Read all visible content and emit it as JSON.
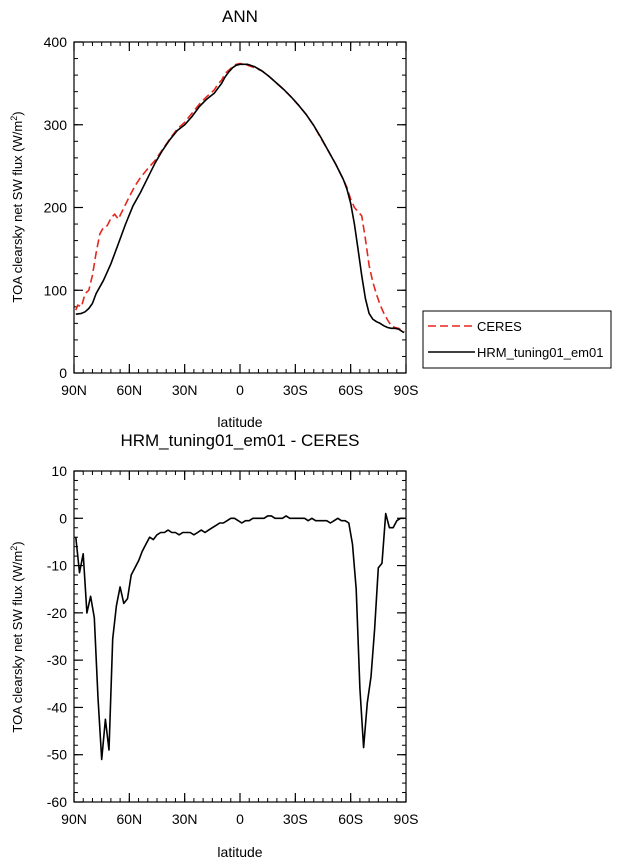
{
  "chart_data": [
    {
      "type": "line",
      "title": "ANN",
      "xlabel": "latitude",
      "ylabel": "TOA clearsky net SW flux (W/m²)",
      "xlim": [
        90,
        -90
      ],
      "ylim": [
        0,
        400
      ],
      "yticks": [
        0,
        100,
        200,
        300,
        400
      ],
      "xticks": [
        90,
        60,
        30,
        0,
        -30,
        -60,
        -90
      ],
      "xticklabels": [
        "90N",
        "60N",
        "30N",
        "0",
        "30S",
        "60S",
        "90S"
      ],
      "legend": "outside-right",
      "series": [
        {
          "name": "CERES",
          "color": "#e8261d",
          "dash": true,
          "points": [
            [
              89,
              76
            ],
            [
              88,
              82
            ],
            [
              86,
              80
            ],
            [
              84,
              96
            ],
            [
              82,
              100
            ],
            [
              80,
              118
            ],
            [
              78,
              145
            ],
            [
              76,
              168
            ],
            [
              74,
              176
            ],
            [
              72,
              178
            ],
            [
              70,
              187
            ],
            [
              68,
              192
            ],
            [
              66,
              186
            ],
            [
              64,
              195
            ],
            [
              60,
              213
            ],
            [
              57,
              226
            ],
            [
              54,
              236
            ],
            [
              50,
              247
            ],
            [
              46,
              257
            ],
            [
              42,
              270
            ],
            [
              38,
              283
            ],
            [
              34,
              295
            ],
            [
              30,
              303
            ],
            [
              26,
              314
            ],
            [
              22,
              325
            ],
            [
              18,
              334
            ],
            [
              14,
              342
            ],
            [
              12,
              349
            ],
            [
              10,
              354
            ],
            [
              8,
              362
            ],
            [
              6,
              366
            ],
            [
              4,
              370
            ],
            [
              2,
              373
            ],
            [
              0,
              374
            ],
            [
              -4,
              372
            ],
            [
              -8,
              369
            ],
            [
              -12,
              365
            ],
            [
              -16,
              358
            ],
            [
              -20,
              350
            ],
            [
              -24,
              342
            ],
            [
              -28,
              333
            ],
            [
              -32,
              323
            ],
            [
              -36,
              312
            ],
            [
              -40,
              299
            ],
            [
              -44,
              283
            ],
            [
              -48,
              268
            ],
            [
              -52,
              252
            ],
            [
              -56,
              234
            ],
            [
              -58,
              224
            ],
            [
              -60,
              210
            ],
            [
              -62,
              200
            ],
            [
              -64,
              195
            ],
            [
              -66,
              190
            ],
            [
              -68,
              162
            ],
            [
              -70,
              130
            ],
            [
              -72,
              110
            ],
            [
              -74,
              95
            ],
            [
              -76,
              82
            ],
            [
              -78,
              72
            ],
            [
              -80,
              64
            ],
            [
              -82,
              57
            ],
            [
              -84,
              55
            ],
            [
              -86,
              54
            ],
            [
              -88,
              51
            ],
            [
              -89,
              50
            ]
          ]
        },
        {
          "name": "HRM_tuning01_em01",
          "color": "#000000",
          "dash": false,
          "points": [
            [
              89,
              71
            ],
            [
              86,
              72
            ],
            [
              84,
              74
            ],
            [
              82,
              78
            ],
            [
              80,
              84
            ],
            [
              78,
              96
            ],
            [
              74,
              112
            ],
            [
              70,
              132
            ],
            [
              66,
              156
            ],
            [
              62,
              180
            ],
            [
              58,
              202
            ],
            [
              54,
              218
            ],
            [
              50,
              236
            ],
            [
              46,
              254
            ],
            [
              42,
              269
            ],
            [
              38,
              282
            ],
            [
              34,
              293
            ],
            [
              30,
              300
            ],
            [
              26,
              310
            ],
            [
              22,
              322
            ],
            [
              18,
              331
            ],
            [
              14,
              338
            ],
            [
              12,
              344
            ],
            [
              10,
              350
            ],
            [
              8,
              358
            ],
            [
              6,
              364
            ],
            [
              4,
              369
            ],
            [
              2,
              372
            ],
            [
              0,
              373
            ],
            [
              -4,
              373
            ],
            [
              -8,
              370
            ],
            [
              -12,
              365
            ],
            [
              -16,
              358
            ],
            [
              -20,
              350
            ],
            [
              -24,
              342
            ],
            [
              -28,
              333
            ],
            [
              -32,
              323
            ],
            [
              -36,
              312
            ],
            [
              -40,
              299
            ],
            [
              -44,
              284
            ],
            [
              -48,
              268
            ],
            [
              -52,
              252
            ],
            [
              -56,
              234
            ],
            [
              -58,
              222
            ],
            [
              -60,
              205
            ],
            [
              -62,
              180
            ],
            [
              -64,
              150
            ],
            [
              -66,
              118
            ],
            [
              -68,
              90
            ],
            [
              -70,
              72
            ],
            [
              -72,
              65
            ],
            [
              -74,
              62
            ],
            [
              -76,
              60
            ],
            [
              -78,
              57
            ],
            [
              -80,
              55
            ],
            [
              -82,
              54
            ],
            [
              -84,
              54
            ],
            [
              -86,
              53
            ],
            [
              -88,
              50
            ],
            [
              -89,
              49
            ]
          ]
        }
      ]
    },
    {
      "type": "line",
      "title": "HRM_tuning01_em01 - CERES",
      "xlabel": "latitude",
      "ylabel": "TOA clearsky net SW flux (W/m²)",
      "xlim": [
        90,
        -90
      ],
      "ylim": [
        -60,
        10
      ],
      "yticks": [
        -60,
        -50,
        -40,
        -30,
        -20,
        -10,
        0,
        10
      ],
      "xticks": [
        90,
        60,
        30,
        0,
        -30,
        -60,
        -90
      ],
      "xticklabels": [
        "90N",
        "60N",
        "30N",
        "0",
        "30S",
        "60S",
        "90S"
      ],
      "series": [
        {
          "name": "HRM_tuning01_em01 - CERES",
          "color": "#000000",
          "dash": false,
          "points": [
            [
              89,
              -4
            ],
            [
              87,
              -11.5
            ],
            [
              85,
              -7.5
            ],
            [
              83,
              -20
            ],
            [
              81,
              -16.5
            ],
            [
              79,
              -21
            ],
            [
              77,
              -38
            ],
            [
              75,
              -51
            ],
            [
              73,
              -42.5
            ],
            [
              71,
              -49
            ],
            [
              69,
              -25.5
            ],
            [
              67,
              -18.5
            ],
            [
              65,
              -14.5
            ],
            [
              63,
              -18
            ],
            [
              61,
              -17
            ],
            [
              59,
              -12
            ],
            [
              57,
              -10.5
            ],
            [
              55,
              -9
            ],
            [
              53,
              -7
            ],
            [
              51,
              -5.5
            ],
            [
              49,
              -4
            ],
            [
              47,
              -4.5
            ],
            [
              45,
              -3.5
            ],
            [
              43,
              -3
            ],
            [
              41,
              -3
            ],
            [
              39,
              -2.5
            ],
            [
              37,
              -3
            ],
            [
              35,
              -3
            ],
            [
              33,
              -3.5
            ],
            [
              31,
              -3
            ],
            [
              29,
              -3
            ],
            [
              27,
              -3
            ],
            [
              25,
              -3.5
            ],
            [
              23,
              -3
            ],
            [
              21,
              -2.5
            ],
            [
              19,
              -3
            ],
            [
              17,
              -2.5
            ],
            [
              15,
              -2
            ],
            [
              13,
              -1.5
            ],
            [
              11,
              -1
            ],
            [
              9,
              -1
            ],
            [
              7,
              -0.5
            ],
            [
              5,
              0
            ],
            [
              3,
              0
            ],
            [
              1,
              -0.5
            ],
            [
              -1,
              -1
            ],
            [
              -3,
              -0.5
            ],
            [
              -5,
              -0.5
            ],
            [
              -7,
              0
            ],
            [
              -9,
              0
            ],
            [
              -11,
              0
            ],
            [
              -13,
              0
            ],
            [
              -15,
              0.5
            ],
            [
              -17,
              0.5
            ],
            [
              -19,
              0
            ],
            [
              -21,
              0
            ],
            [
              -23,
              0
            ],
            [
              -25,
              0.5
            ],
            [
              -27,
              0
            ],
            [
              -29,
              0
            ],
            [
              -31,
              0
            ],
            [
              -33,
              0
            ],
            [
              -35,
              0
            ],
            [
              -37,
              -0.5
            ],
            [
              -39,
              0
            ],
            [
              -41,
              -0.5
            ],
            [
              -43,
              -0.5
            ],
            [
              -45,
              -0.5
            ],
            [
              -47,
              -0.5
            ],
            [
              -49,
              -1
            ],
            [
              -51,
              -0.5
            ],
            [
              -53,
              0
            ],
            [
              -55,
              -0.5
            ],
            [
              -57,
              -0.5
            ],
            [
              -59,
              -1
            ],
            [
              -61,
              -5.5
            ],
            [
              -63,
              -15
            ],
            [
              -65,
              -36
            ],
            [
              -67,
              -48.5
            ],
            [
              -69,
              -39
            ],
            [
              -71,
              -33.5
            ],
            [
              -73,
              -23.5
            ],
            [
              -75,
              -10.5
            ],
            [
              -77,
              -9.5
            ],
            [
              -79,
              1
            ],
            [
              -81,
              -2
            ],
            [
              -83,
              -2
            ],
            [
              -85,
              -0.5
            ],
            [
              -87,
              0
            ],
            [
              -89,
              0
            ]
          ]
        }
      ]
    }
  ]
}
